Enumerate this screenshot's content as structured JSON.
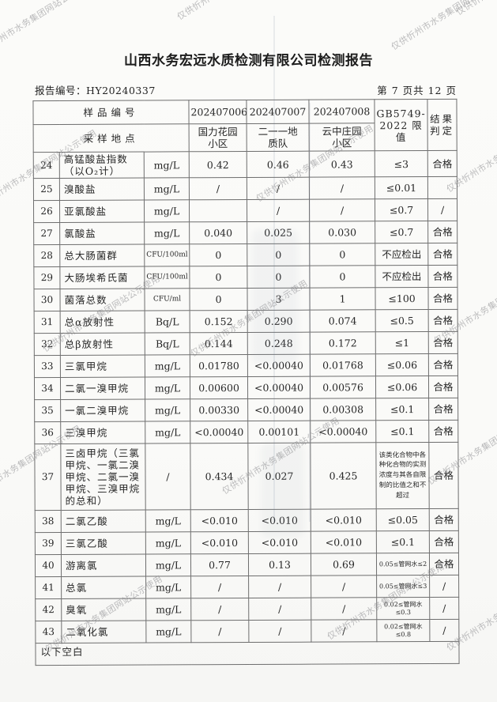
{
  "page": {
    "title": "山西水务宏远水质检测有限公司检测报告",
    "report_no": "报告编号：HY20240337",
    "page_indicator": "第 7 页共 12 页",
    "watermark_text": "仅供忻州市水务集团网站公示使用",
    "blank_note": "以下空白",
    "text_color": "#262626",
    "border_color": "#6e6e6e",
    "watermark_color": "#87878a"
  },
  "table": {
    "header": {
      "sample_id_label": "样品编号",
      "location_label": "采样地点",
      "sample_ids": [
        "202407006",
        "202407007",
        "202407008"
      ],
      "locations": [
        "国力花园\n小区",
        "二一一地\n质队",
        "云中庄园\n小区"
      ],
      "limit_label": "GB5749-\n2022 限值",
      "result_label": "结果\n判定"
    },
    "rows": [
      {
        "no": "24",
        "name": "高锰酸盐指数\n（以O₂计）",
        "unit": "mg/L",
        "v1": "0.42",
        "v2": "0.46",
        "v3": "0.43",
        "limit": "≤3",
        "result": "合格"
      },
      {
        "no": "25",
        "name": "溴酸盐",
        "unit": "mg/L",
        "v1": "/",
        "v2": "/",
        "v3": "/",
        "limit": "≤0.01",
        "result": ""
      },
      {
        "no": "26",
        "name": "亚氯酸盐",
        "unit": "mg/L",
        "v1": "",
        "v2": "/",
        "v3": "/",
        "limit": "≤0.7",
        "result": "/"
      },
      {
        "no": "27",
        "name": "氯酸盐",
        "unit": "mg/L",
        "v1": "0.040",
        "v2": "0.025",
        "v3": "0.030",
        "limit": "≤0.7",
        "result": "合格"
      },
      {
        "no": "28",
        "name": "总大肠菌群",
        "unit": "CFU/100ml",
        "v1": "0",
        "v2": "0",
        "v3": "0",
        "limit": "不应检出",
        "result": "合格"
      },
      {
        "no": "29",
        "name": "大肠埃希氏菌",
        "unit": "CFU/100ml",
        "v1": "0",
        "v2": "0",
        "v3": "0",
        "limit": "不应检出",
        "result": "合格"
      },
      {
        "no": "30",
        "name": "菌落总数",
        "unit": "CFU/ml",
        "v1": "0",
        "v2": "3",
        "v3": "1",
        "limit": "≤100",
        "result": "合格"
      },
      {
        "no": "31",
        "name": "总α放射性",
        "unit": "Bq/L",
        "v1": "0.152",
        "v2": "0.290",
        "v3": "0.074",
        "limit": "≤0.5",
        "result": "合格"
      },
      {
        "no": "32",
        "name": "总β放射性",
        "unit": "Bq/L",
        "v1": "0.144",
        "v2": "0.248",
        "v3": "0.172",
        "limit": "≤1",
        "result": "合格"
      },
      {
        "no": "33",
        "name": "三氯甲烷",
        "unit": "mg/L",
        "v1": "0.01780",
        "v2": "<0.00040",
        "v3": "0.01768",
        "limit": "≤0.06",
        "result": "合格"
      },
      {
        "no": "34",
        "name": "二氯一溴甲烷",
        "unit": "mg/L",
        "v1": "0.00600",
        "v2": "<0.00040",
        "v3": "0.00576",
        "limit": "≤0.06",
        "result": "合格"
      },
      {
        "no": "35",
        "name": "一氯二溴甲烷",
        "unit": "mg/L",
        "v1": "0.00330",
        "v2": "<0.00040",
        "v3": "0.00308",
        "limit": "≤0.1",
        "result": "合格"
      },
      {
        "no": "36",
        "name": "三溴甲烷",
        "unit": "mg/L",
        "v1": "<0.00040",
        "v2": "0.00101",
        "v3": "<0.00040",
        "limit": "≤0.1",
        "result": "合格"
      },
      {
        "no": "37",
        "name": "三卤甲烷（三氯甲烷、一氯二溴甲烷、二氯一溴甲烷、三溴甲烷的总和）",
        "unit": "/",
        "v1": "0.434",
        "v2": "0.027",
        "v3": "0.425",
        "limit": "该类化合物中各种化合物的实测浓度与其各自限制的比值之和不超过",
        "result": "合格"
      },
      {
        "no": "38",
        "name": "二氯乙酸",
        "unit": "mg/L",
        "v1": "<0.010",
        "v2": "<0.010",
        "v3": "<0.010",
        "limit": "≤0.05",
        "result": "合格"
      },
      {
        "no": "39",
        "name": "三氯乙酸",
        "unit": "mg/L",
        "v1": "<0.010",
        "v2": "<0.010",
        "v3": "<0.010",
        "limit": "≤0.1",
        "result": "合格"
      },
      {
        "no": "40",
        "name": "游离氯",
        "unit": "mg/L",
        "v1": "0.77",
        "v2": "0.13",
        "v3": "0.69",
        "limit": "0.05≤管网水≤2",
        "result": "合格"
      },
      {
        "no": "41",
        "name": "总氯",
        "unit": "mg/L",
        "v1": "/",
        "v2": "/",
        "v3": "/",
        "limit": "0.05≤管网水≤3",
        "result": "/"
      },
      {
        "no": "42",
        "name": "臭氧",
        "unit": "mg/L",
        "v1": "/",
        "v2": "/",
        "v3": "/",
        "limit": "0.02≤管网水≤0.3",
        "result": "/"
      },
      {
        "no": "43",
        "name": "二氧化氯",
        "unit": "mg/L",
        "v1": "/",
        "v2": "/",
        "v3": "/",
        "limit": "0.02≤管网水≤0.8",
        "result": "/"
      }
    ]
  }
}
